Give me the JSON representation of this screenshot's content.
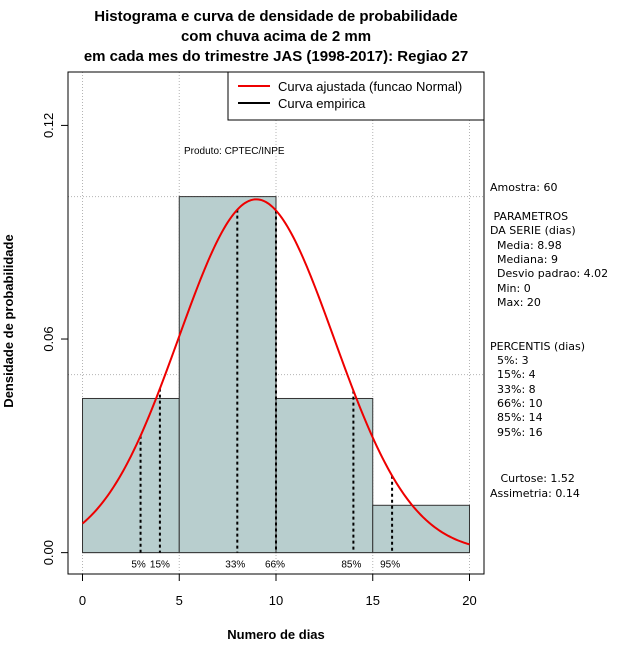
{
  "chart_data": {
    "type": "histogram",
    "title_lines": [
      "Histograma e curva de densidade de probabilidade",
      "com chuva acima de 2 mm",
      "em cada mes do trimestre JAS (1998-2017): Regiao 27"
    ],
    "xlabel": "Numero de dias",
    "ylabel": "Densidade de probabilidade",
    "xlim": [
      -0.75,
      20.75
    ],
    "ylim": [
      -0.006,
      0.135
    ],
    "x_ticks": [
      0,
      5,
      10,
      15,
      20
    ],
    "y_ticks": [
      0.0,
      0.06,
      0.12
    ],
    "y_tick_labels": [
      "0.00",
      "0.06",
      "0.12"
    ],
    "x_gridlines": [
      0,
      5,
      10,
      15,
      20
    ],
    "y_gridlines": [
      0.05,
      0.1
    ],
    "bins": [
      {
        "from": 0,
        "to": 5,
        "density": 0.0433
      },
      {
        "from": 5,
        "to": 10,
        "density": 0.1
      },
      {
        "from": 10,
        "to": 15,
        "density": 0.0433
      },
      {
        "from": 15,
        "to": 20,
        "density": 0.0133
      }
    ],
    "fit": {
      "name": "Curva ajustada (funcao Normal)",
      "mean": 8.98,
      "sd": 4.02,
      "color": "#ee0000"
    },
    "empirical_label": "Curva empirica",
    "percentiles": [
      {
        "x": 3,
        "label": "5%"
      },
      {
        "x": 4,
        "label": "15%"
      },
      {
        "x": 8,
        "label": "33%"
      },
      {
        "x": 10,
        "label": "66%"
      },
      {
        "x": 14,
        "label": "85%"
      },
      {
        "x": 16,
        "label": "95%"
      }
    ],
    "product_label": "Produto: CPTEC/INPE",
    "bar_color": "#b8cece"
  },
  "side_panel": {
    "sample": "Amostra: 60",
    "params_title_1": " PARAMETROS",
    "params_title_2": "DA SERIE (dias)",
    "media": "  Media: 8.98",
    "mediana": "  Mediana: 9",
    "desvio": "  Desvio padrao: 4.02",
    "min": "  Min: 0",
    "max": "  Max: 20",
    "perc_title": "PERCENTIS (dias)",
    "p5": "  5%: 3",
    "p15": "  15%: 4",
    "p33": "  33%: 8",
    "p66": "  66%: 10",
    "p85": "  85%: 14",
    "p95": "  95%: 16",
    "curtose": "   Curtose: 1.52",
    "assimetria": "Assimetria: 0.14"
  }
}
